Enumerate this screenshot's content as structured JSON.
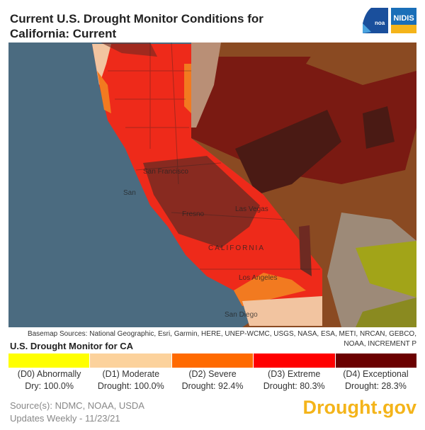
{
  "title": "Current U.S. Drought Monitor Conditions for California: Current",
  "logos": {
    "noaa": "noaa",
    "nidis": "NIDIS"
  },
  "map": {
    "labels": {
      "sf": "San Francisco",
      "sa": "San",
      "fresno": "Fresno",
      "lv": "Las Vegas",
      "state": "CALIFORNIA",
      "la": "Los Angeles",
      "sd": "San Diego"
    }
  },
  "basemap_sources": "Basemap Sources: National Geographic, Esri, Garmin, HERE, UNEP-WCMC, USGS, NASA, ESA, METI, NRCAN, GEBCO, NOAA, INCREMENT P",
  "legend": {
    "title": "U.S. Drought Monitor for CA",
    "items": [
      {
        "line1": "(D0) Abnormally",
        "line2": "Dry: 100.0%",
        "color": "#ffff00"
      },
      {
        "line1": "(D1) Moderate",
        "line2": "Drought: 100.0%",
        "color": "#fcd29c"
      },
      {
        "line1": "(D2) Severe",
        "line2": "Drought: 92.4%",
        "color": "#ff6a00"
      },
      {
        "line1": "(D3) Extreme",
        "line2": "Drought: 80.3%",
        "color": "#ff0000"
      },
      {
        "line1": "(D4) Exceptional",
        "line2": "Drought: 28.3%",
        "color": "#6b0000"
      }
    ]
  },
  "footer": {
    "sources": "Source(s): NDMC, NOAA, USDA",
    "updates": "Updates Weekly - 11/23/21",
    "brand": "Drought.gov"
  }
}
